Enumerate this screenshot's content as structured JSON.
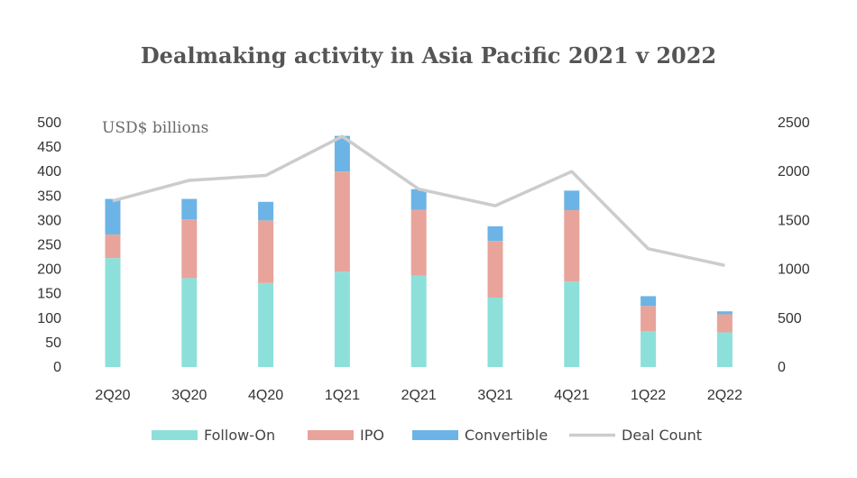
{
  "chart_data": {
    "type": "bar",
    "subtype": "stacked-bar-with-line",
    "title": "Dealmaking activity in Asia Pacific 2021 v 2022",
    "unit_label": "USD$ billions",
    "categories": [
      "2Q20",
      "3Q20",
      "4Q20",
      "1Q21",
      "2Q21",
      "3Q21",
      "4Q21",
      "1Q22",
      "2Q22"
    ],
    "series": [
      {
        "name": "Follow-On",
        "type": "bar",
        "axis": "left",
        "color": "#8de0da",
        "values": [
          223,
          182,
          172,
          195,
          187,
          142,
          175,
          73,
          71
        ]
      },
      {
        "name": "IPO",
        "type": "bar",
        "axis": "left",
        "color": "#e8a49b",
        "values": [
          48,
          120,
          128,
          205,
          135,
          116,
          146,
          52,
          37
        ]
      },
      {
        "name": "Convertible",
        "type": "bar",
        "axis": "left",
        "color": "#6cb4e6",
        "values": [
          73,
          42,
          38,
          73,
          42,
          30,
          40,
          20,
          6
        ]
      },
      {
        "name": "Deal Count",
        "type": "line",
        "axis": "right",
        "color": "#cccccc",
        "values": [
          1700,
          1910,
          1960,
          2360,
          1820,
          1650,
          2000,
          1210,
          1040
        ]
      }
    ],
    "y_left": {
      "min": 0,
      "max": 500,
      "step": 50,
      "ticks": [
        "0",
        "50",
        "100",
        "150",
        "200",
        "250",
        "300",
        "350",
        "400",
        "450",
        "500"
      ]
    },
    "y_right": {
      "min": 0,
      "max": 2500,
      "step": 500,
      "ticks": [
        "0",
        "500",
        "1000",
        "1500",
        "2000",
        "2500"
      ]
    },
    "grid": false,
    "legend_position": "bottom"
  }
}
